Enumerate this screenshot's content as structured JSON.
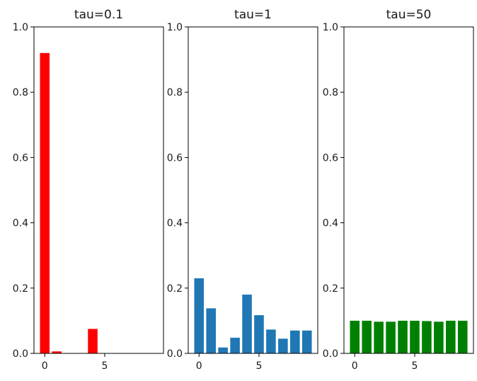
{
  "chart_data": [
    {
      "type": "bar",
      "title": "tau=0.1",
      "color": "#ff0000",
      "x": [
        0,
        1,
        2,
        3,
        4,
        5,
        6,
        7,
        8,
        9
      ],
      "values": [
        0.92,
        0.006,
        0.0,
        0.0,
        0.075,
        0.0,
        0.0,
        0.0,
        0.0,
        0.0
      ],
      "ylim": [
        0,
        1.0
      ],
      "xlim": [
        -0.9,
        9.9
      ],
      "xticks": [
        {
          "value": 0,
          "label": "0"
        },
        {
          "value": 5,
          "label": "5"
        }
      ],
      "yticks": [
        {
          "value": 0.0,
          "label": "0.0"
        },
        {
          "value": 0.2,
          "label": "0.2"
        },
        {
          "value": 0.4,
          "label": "0.4"
        },
        {
          "value": 0.6,
          "label": "0.6"
        },
        {
          "value": 0.8,
          "label": "0.8"
        },
        {
          "value": 1.0,
          "label": "1.0"
        }
      ],
      "grid": false
    },
    {
      "type": "bar",
      "title": "tau=1",
      "color": "#1f77b4",
      "x": [
        0,
        1,
        2,
        3,
        4,
        5,
        6,
        7,
        8,
        9
      ],
      "values": [
        0.23,
        0.138,
        0.018,
        0.048,
        0.18,
        0.117,
        0.073,
        0.045,
        0.07,
        0.07
      ],
      "ylim": [
        0,
        1.0
      ],
      "xlim": [
        -0.9,
        9.9
      ],
      "xticks": [
        {
          "value": 0,
          "label": "0"
        },
        {
          "value": 5,
          "label": "5"
        }
      ],
      "yticks": [
        {
          "value": 0.0,
          "label": "0.0"
        },
        {
          "value": 0.2,
          "label": "0.2"
        },
        {
          "value": 0.4,
          "label": "0.4"
        },
        {
          "value": 0.6,
          "label": "0.6"
        },
        {
          "value": 0.8,
          "label": "0.8"
        },
        {
          "value": 1.0,
          "label": "1.0"
        }
      ],
      "grid": false
    },
    {
      "type": "bar",
      "title": "tau=50",
      "color": "#008000",
      "x": [
        0,
        1,
        2,
        3,
        4,
        5,
        6,
        7,
        8,
        9
      ],
      "values": [
        0.1,
        0.1,
        0.097,
        0.097,
        0.1,
        0.1,
        0.099,
        0.097,
        0.1,
        0.1
      ],
      "ylim": [
        0,
        1.0
      ],
      "xlim": [
        -0.9,
        9.9
      ],
      "xticks": [
        {
          "value": 0,
          "label": "0"
        },
        {
          "value": 5,
          "label": "5"
        }
      ],
      "yticks": [
        {
          "value": 0.0,
          "label": "0.0"
        },
        {
          "value": 0.2,
          "label": "0.2"
        },
        {
          "value": 0.4,
          "label": "0.4"
        },
        {
          "value": 0.6,
          "label": "0.6"
        },
        {
          "value": 0.8,
          "label": "0.8"
        },
        {
          "value": 1.0,
          "label": "1.0"
        }
      ],
      "grid": false
    }
  ]
}
